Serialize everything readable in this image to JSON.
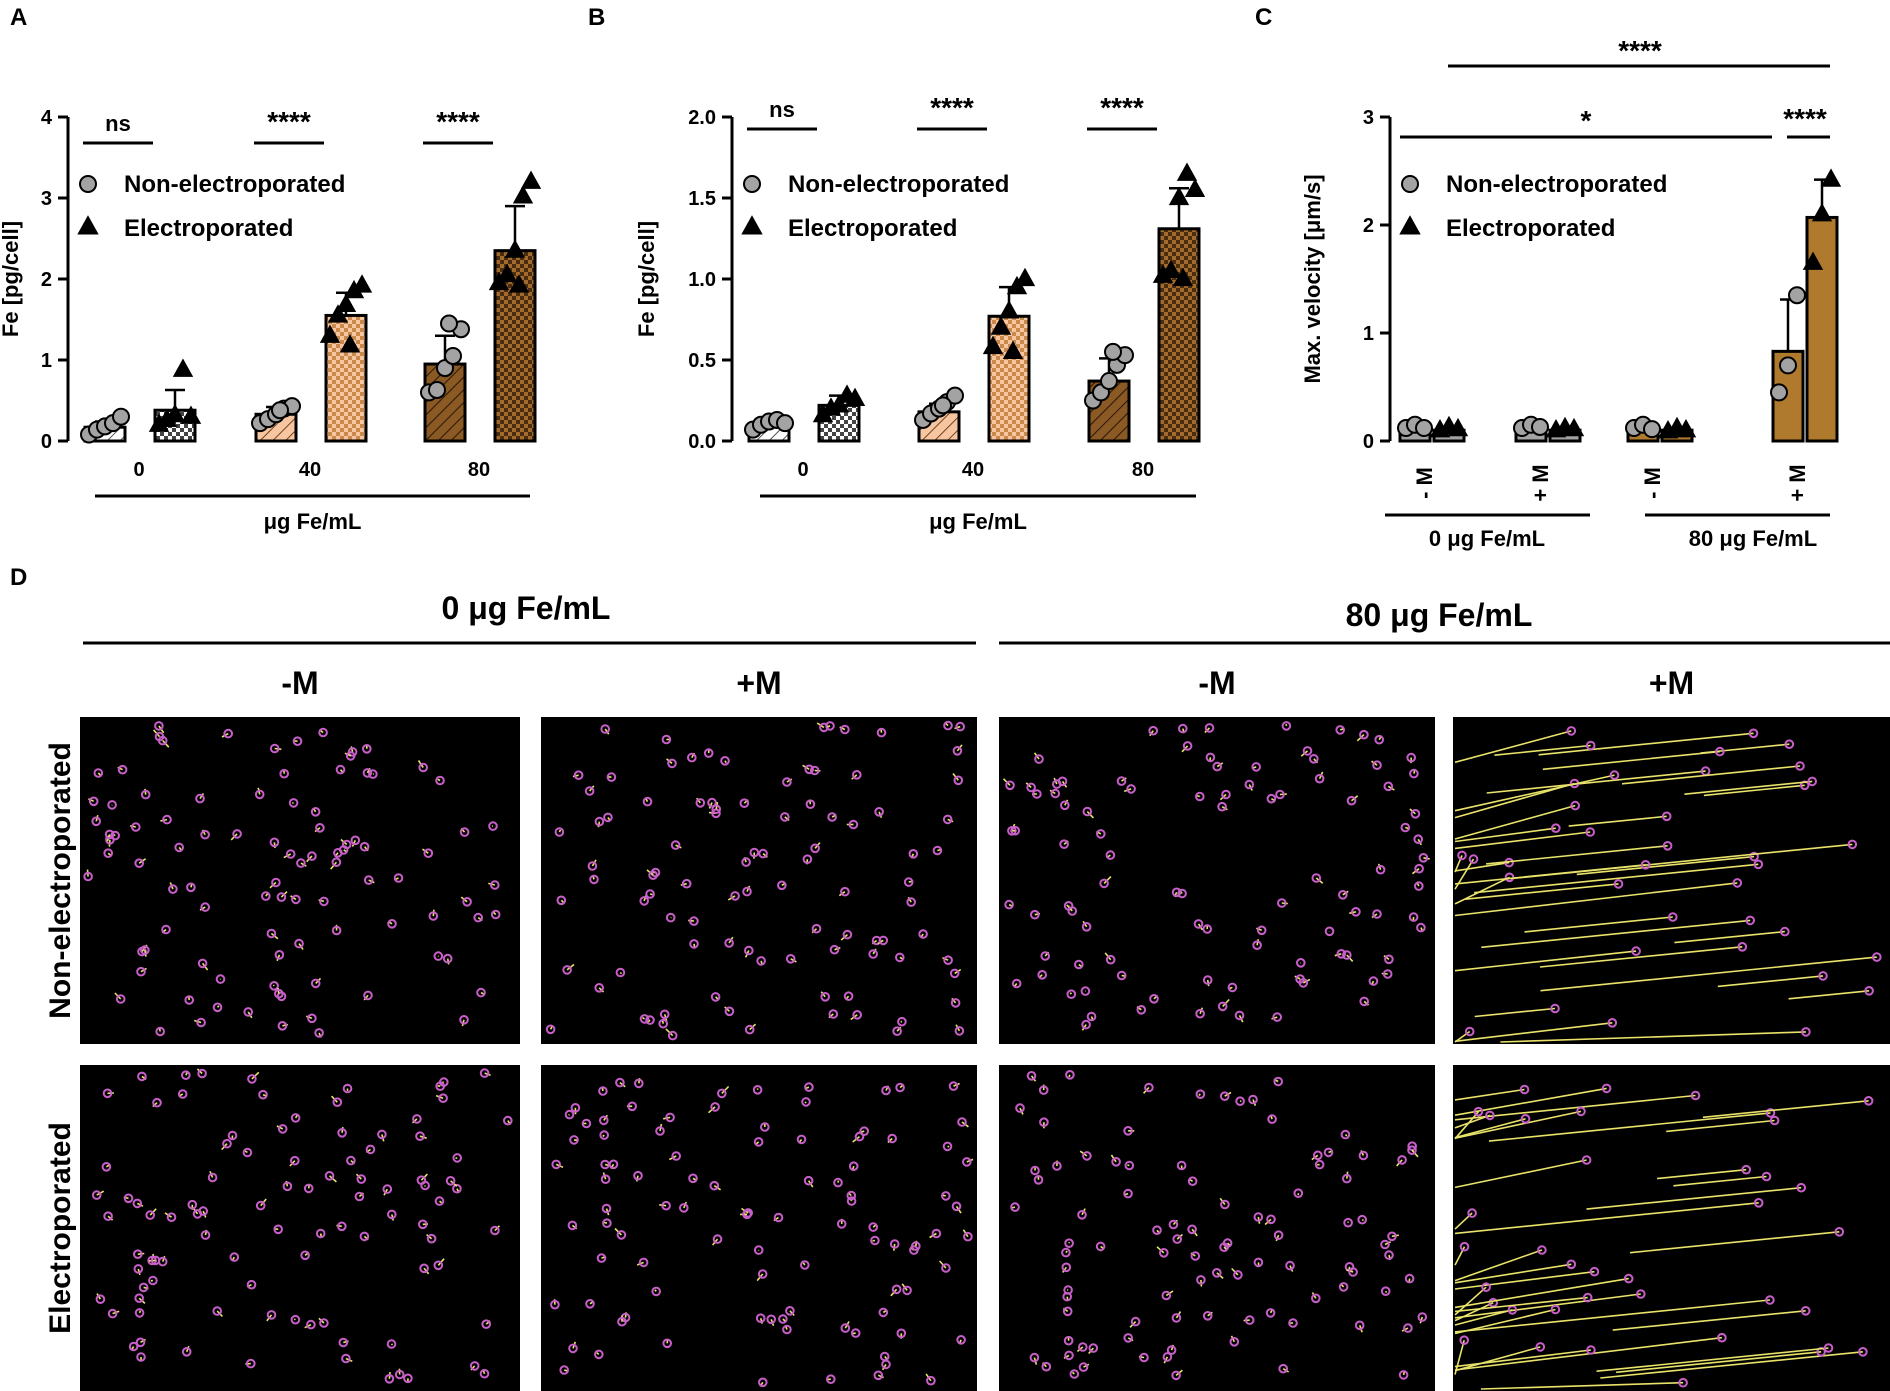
{
  "panel_letters": [
    "A",
    "B",
    "C",
    "D"
  ],
  "colors": {
    "gray": "#a3a3a3",
    "light_orange": "#f7c6a0",
    "medium_orange": "#c9894a",
    "dark_brown": "#8b5a24",
    "bar_brown": "#b07a2e",
    "track": "#e9e36a",
    "cell": "#c85fc8",
    "black": "#000000"
  },
  "legend": {
    "non_electroporated": "Non-electroporated",
    "electroporated": "Electroporated"
  },
  "chart_data": [
    {
      "panel": "A",
      "type": "bar",
      "ylabel": "Fe [pg/cell]",
      "xlabel": "μg Fe/mL",
      "ylim": [
        0,
        4
      ],
      "yticks": [
        "0",
        "1",
        "2",
        "3",
        "4"
      ],
      "categories": [
        "0",
        "40",
        "80"
      ],
      "significance": [
        "ns",
        "****",
        "****"
      ],
      "series": [
        {
          "name": "Non-electroporated",
          "values": [
            0.17,
            0.33,
            0.95
          ],
          "errors": [
            0.07,
            0.09,
            0.35
          ],
          "points": [
            [
              0.08,
              0.14,
              0.18,
              0.22,
              0.3
            ],
            [
              0.22,
              0.27,
              0.33,
              0.4,
              0.43,
              0.38
            ],
            [
              0.6,
              0.63,
              0.9,
              1.05,
              1.38,
              1.45
            ]
          ]
        },
        {
          "name": "Electroporated",
          "values": [
            0.38,
            1.55,
            2.35
          ],
          "errors": [
            0.25,
            0.28,
            0.55
          ],
          "points": [
            [
              0.2,
              0.26,
              0.32,
              0.88,
              0.3
            ],
            [
              1.3,
              1.55,
              1.68,
              1.85,
              1.92,
              1.18
            ],
            [
              1.95,
              2.05,
              2.35,
              3.02,
              3.2,
              1.92
            ]
          ]
        }
      ]
    },
    {
      "panel": "B",
      "type": "bar",
      "ylabel": "Fe [pg/cell]",
      "xlabel": "μg Fe/mL",
      "ylim": [
        0,
        2
      ],
      "yticks": [
        "0.0",
        "0.5",
        "1.0",
        "1.5",
        "2.0"
      ],
      "categories": [
        "0",
        "40",
        "80"
      ],
      "significance": [
        "ns",
        "****",
        "****"
      ],
      "series": [
        {
          "name": "Non-electroporated",
          "values": [
            0.1,
            0.18,
            0.37
          ],
          "errors": [
            0.04,
            0.05,
            0.14
          ],
          "points": [
            [
              0.07,
              0.1,
              0.12,
              0.13,
              0.11
            ],
            [
              0.13,
              0.17,
              0.2,
              0.24,
              0.28,
              0.22
            ],
            [
              0.25,
              0.3,
              0.37,
              0.47,
              0.53,
              0.55
            ]
          ]
        },
        {
          "name": "Electroporated",
          "values": [
            0.22,
            0.77,
            1.31
          ],
          "errors": [
            0.06,
            0.18,
            0.25
          ],
          "points": [
            [
              0.16,
              0.2,
              0.22,
              0.28,
              0.26
            ],
            [
              0.58,
              0.7,
              0.8,
              0.95,
              1.0,
              0.55
            ],
            [
              1.02,
              1.05,
              1.5,
              1.65,
              1.55,
              1.0
            ]
          ]
        }
      ]
    },
    {
      "panel": "C",
      "type": "bar",
      "ylabel": "Max. velocity [μm/s]",
      "ylim": [
        0,
        3
      ],
      "yticks": [
        "0",
        "1",
        "2",
        "3"
      ],
      "categories": [
        "- M",
        "+ M",
        "- M",
        "+ M"
      ],
      "groups": [
        "0 μg Fe/mL",
        "80 μg Fe/mL"
      ],
      "significance": {
        "top": "****",
        "middle": "*",
        "right": "****"
      },
      "series": [
        {
          "name": "Non-electroporated",
          "values": [
            0.13,
            0.13,
            0.13,
            0.83
          ],
          "errors": [
            0.02,
            0.02,
            0.02,
            0.48
          ],
          "points": [
            [
              0.12,
              0.15,
              0.12
            ],
            [
              0.12,
              0.15,
              0.13
            ],
            [
              0.12,
              0.15,
              0.11
            ],
            [
              0.45,
              0.7,
              1.35
            ]
          ]
        },
        {
          "name": "Electroporated",
          "values": [
            0.1,
            0.1,
            0.1,
            2.07
          ],
          "errors": [
            0.02,
            0.02,
            0.02,
            0.35
          ],
          "points": [
            [
              0.1,
              0.13,
              0.11
            ],
            [
              0.1,
              0.12,
              0.11
            ],
            [
              0.09,
              0.12,
              0.1
            ],
            [
              1.65,
              2.1,
              2.42
            ]
          ]
        }
      ]
    }
  ],
  "panel_d": {
    "groups": [
      "0 μg Fe/mL",
      "80 μg Fe/mL"
    ],
    "columns": [
      "-M",
      "+M",
      "-M",
      "+M"
    ],
    "rows": [
      "Non-electroporated",
      "Electroporated"
    ]
  }
}
